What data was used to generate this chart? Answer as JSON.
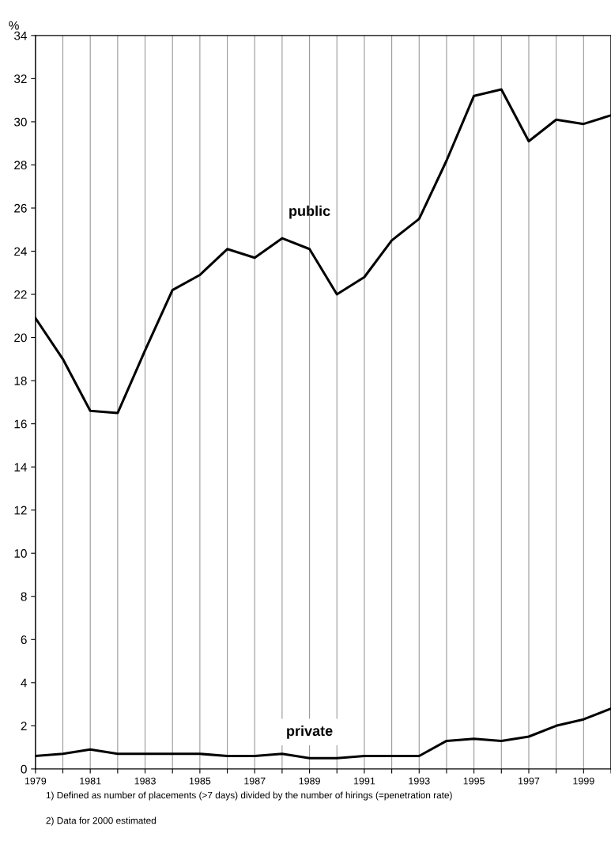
{
  "chart_data": {
    "type": "line",
    "ylabel": "%",
    "x": [
      1979,
      1980,
      1981,
      1982,
      1983,
      1984,
      1985,
      1986,
      1987,
      1988,
      1989,
      1990,
      1991,
      1992,
      1993,
      1994,
      1995,
      1996,
      1997,
      1998,
      1999,
      2000
    ],
    "series": [
      {
        "name": "public",
        "color": "#000000",
        "values": [
          20.9,
          19.0,
          16.6,
          16.5,
          19.4,
          22.2,
          22.9,
          24.1,
          23.7,
          24.6,
          24.1,
          22.0,
          22.8,
          24.5,
          25.5,
          28.2,
          31.2,
          31.5,
          29.1,
          30.1,
          29.9,
          30.3
        ]
      },
      {
        "name": "private",
        "color": "#000000",
        "values": [
          0.6,
          0.7,
          0.9,
          0.7,
          0.7,
          0.7,
          0.7,
          0.6,
          0.6,
          0.7,
          0.5,
          0.5,
          0.6,
          0.6,
          0.6,
          1.3,
          1.4,
          1.3,
          1.5,
          2.0,
          2.3,
          2.8
        ]
      }
    ],
    "xlim": [
      1979,
      2000
    ],
    "xticks": [
      1979,
      {
        "value": 1980,
        "label": null
      },
      1981,
      {
        "value": 1982,
        "label": null
      },
      1983,
      {
        "value": 1984,
        "label": null
      },
      1985,
      {
        "value": 1986,
        "label": null
      },
      1987,
      {
        "value": 1988,
        "label": null
      },
      1989,
      {
        "value": 1990,
        "label": null
      },
      1991,
      {
        "value": 1992,
        "label": null
      },
      1993,
      {
        "value": 1994,
        "label": null
      },
      1995,
      {
        "value": 1996,
        "label": null
      },
      1997,
      {
        "value": 1998,
        "label": null
      },
      1999,
      {
        "value": 2000,
        "label": null
      }
    ],
    "ylim": [
      0,
      34
    ],
    "yticks": [
      0,
      2,
      4,
      6,
      8,
      10,
      12,
      14,
      16,
      18,
      20,
      22,
      24,
      26,
      28,
      30,
      32,
      34
    ],
    "grid": "x",
    "legend": false,
    "marker": "none",
    "line_style": "solid",
    "annotations": [
      "1) Defined as number of placements (>7 days) divided by the number of hirings (=penetration rate)",
      "2) Data for 2000 estimated"
    ]
  }
}
